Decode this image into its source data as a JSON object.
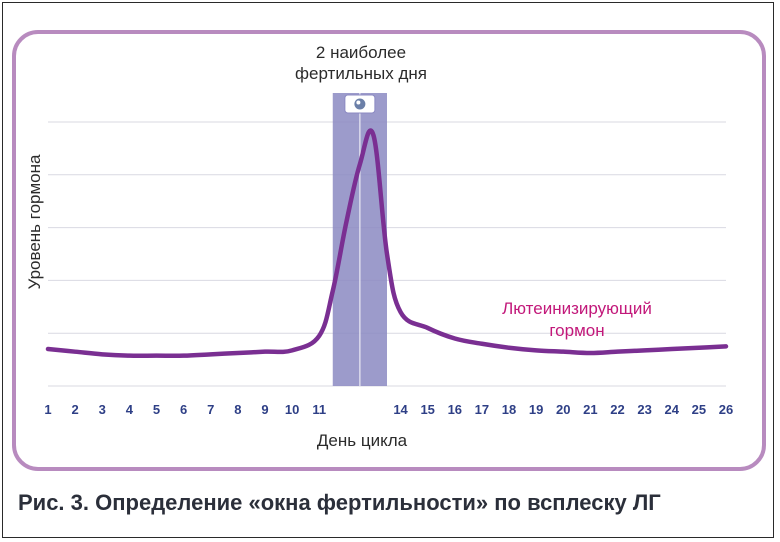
{
  "caption": "Рис. 3. Определение «окна фертильности» по всплеску ЛГ",
  "colors": {
    "frame": "#b88bbf",
    "line": "#7a2f92",
    "highlight": "#8b89c2",
    "grid": "#d9d9e2",
    "series_label": "#c2187a",
    "tick": "#2e3f86"
  },
  "chart_data": {
    "type": "line",
    "title": "",
    "xlabel": "День цикла",
    "ylabel": "Уровень гормона",
    "highlight_label": "2 наиболее фертильных дня",
    "highlight_icon": "ovulation-icon",
    "highlight_days": [
      12,
      13
    ],
    "grid": true,
    "ylim": [
      0,
      100
    ],
    "x": [
      1,
      2,
      3,
      4,
      5,
      6,
      7,
      8,
      9,
      10,
      11,
      11.5,
      12,
      12.5,
      13,
      13.5,
      14,
      15,
      16,
      17,
      18,
      19,
      20,
      21,
      22,
      23,
      24,
      25,
      26
    ],
    "series": [
      {
        "name": "Лютеинизирующий гормон",
        "values": [
          14,
          13,
          12,
          11.5,
          11.5,
          11.5,
          12,
          12.5,
          13,
          13.5,
          19,
          36,
          62,
          84,
          95,
          50,
          28,
          22,
          18,
          16,
          14.5,
          13.5,
          13,
          12.5,
          13,
          13.5,
          14,
          14.5,
          15
        ]
      }
    ]
  }
}
